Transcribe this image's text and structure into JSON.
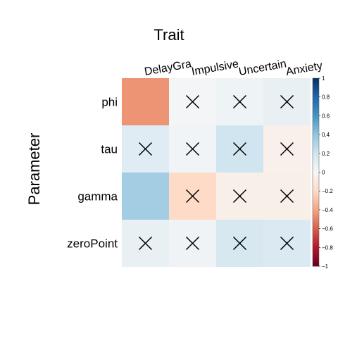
{
  "chart_data": {
    "type": "heatmap",
    "title": "Trait",
    "ylabel": "Parameter",
    "columns": [
      "DelayGra",
      "Impulsive",
      "Uncertain",
      "Anxiety"
    ],
    "rows": [
      "phi",
      "tau",
      "gamma",
      "zeroPoint"
    ],
    "values": [
      [
        -0.45,
        0.02,
        0.05,
        0.08
      ],
      [
        0.12,
        0.03,
        0.2,
        -0.05
      ],
      [
        0.35,
        -0.2,
        -0.06,
        -0.06
      ],
      [
        0.08,
        0.04,
        0.17,
        0.15
      ]
    ],
    "not_significant": [
      [
        false,
        true,
        true,
        true
      ],
      [
        true,
        true,
        true,
        true
      ],
      [
        false,
        true,
        true,
        true
      ],
      [
        true,
        true,
        true,
        true
      ]
    ],
    "colorbar": {
      "range": [
        -1,
        1
      ],
      "ticks": [
        "1",
        "0.8",
        "0.6",
        "0.4",
        "0.2",
        "0",
        "−0.2",
        "−0.4",
        "−0.6",
        "−0.8",
        "−1"
      ]
    },
    "colors": {
      "negative_end": "#67001f",
      "mid": "#f7f7f7",
      "positive_end": "#053061",
      "cross": "#000000"
    }
  }
}
